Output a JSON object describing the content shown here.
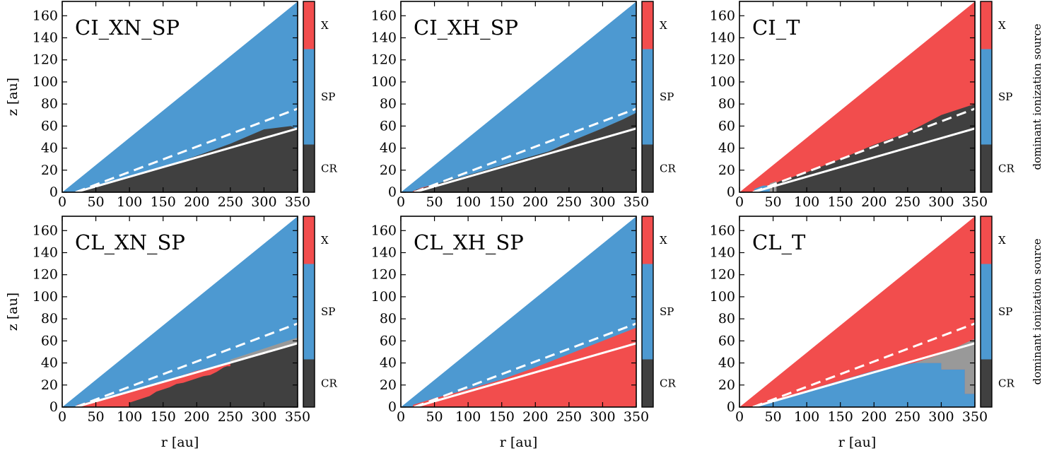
{
  "chart_data": {
    "type": "heatmap",
    "figure_description_title": "dominant ionization source",
    "colors": {
      "X": "#f24d4d",
      "SP": "#4d99d1",
      "CR": "#404040",
      "gray": "#999999",
      "line": "#ffffff",
      "frame": "#000000"
    },
    "x_axis": {
      "label": "r [au]",
      "range": [
        0,
        350
      ],
      "ticks": [
        0,
        50,
        100,
        150,
        200,
        250,
        300,
        350
      ]
    },
    "y_axis": {
      "label": "z [au]",
      "range": [
        0,
        173
      ],
      "ticks": [
        0,
        20,
        40,
        60,
        80,
        100,
        120,
        140,
        160
      ]
    },
    "colorbar": {
      "categories": [
        {
          "key": "X",
          "label": "X",
          "from": 0.75,
          "to": 1.0
        },
        {
          "key": "SP",
          "label": "SP",
          "from": 0.25,
          "to": 0.75
        },
        {
          "key": "CR",
          "label": "CR",
          "from": 0.0,
          "to": 0.25
        }
      ],
      "title": "dominant ionization source"
    },
    "disk_edge_slope": 0.494,
    "reference_lines": {
      "dashed": {
        "r0": 20,
        "slope": 0.2295
      },
      "solid": {
        "r0": 20,
        "slope": 0.1752
      }
    },
    "panels": [
      {
        "title": "CI_XN_SP",
        "base": "SP",
        "regions": [
          {
            "cat": "CR",
            "poly": [
              [
                20,
                0
              ],
              [
                350,
                0
              ],
              [
                350,
                57
              ],
              [
                340,
                60
              ],
              [
                300,
                57
              ],
              [
                250,
                44
              ],
              [
                200,
                33
              ],
              [
                150,
                23
              ],
              [
                100,
                14
              ],
              [
                50,
                6
              ],
              [
                20,
                1
              ]
            ]
          }
        ]
      },
      {
        "title": "CI_XH_SP",
        "base": "SP",
        "regions": [
          {
            "cat": "gray",
            "poly": [
              [
                220,
                37
              ],
              [
                260,
                48
              ],
              [
                300,
                58
              ],
              [
                330,
                66
              ],
              [
                350,
                72
              ],
              [
                350,
                62
              ],
              [
                320,
                58
              ],
              [
                280,
                50
              ],
              [
                240,
                43
              ]
            ]
          },
          {
            "cat": "X",
            "poly": [
              [
                18,
                0
              ],
              [
                55,
                0
              ],
              [
                55,
                8
              ],
              [
                30,
                4
              ],
              [
                18,
                1
              ]
            ]
          },
          {
            "cat": "CR",
            "poly": [
              [
                22,
                0
              ],
              [
                350,
                0
              ],
              [
                350,
                72
              ],
              [
                330,
                66
              ],
              [
                300,
                58
              ],
              [
                260,
                48
              ],
              [
                220,
                37
              ],
              [
                180,
                30
              ],
              [
                120,
                19
              ],
              [
                80,
                12
              ],
              [
                50,
                7
              ],
              [
                22,
                2
              ]
            ]
          }
        ]
      },
      {
        "title": "CI_T",
        "base": "X",
        "regions": [
          {
            "cat": "CR",
            "poly": [
              [
                50,
                0
              ],
              [
                350,
                0
              ],
              [
                350,
                80
              ],
              [
                300,
                70
              ],
              [
                250,
                54
              ],
              [
                200,
                43
              ],
              [
                150,
                30
              ],
              [
                100,
                18
              ],
              [
                60,
                10
              ],
              [
                50,
                7
              ]
            ]
          },
          {
            "cat": "SP",
            "poly": [
              [
                22,
                0
              ],
              [
                50,
                0
              ],
              [
                50,
                6
              ],
              [
                35,
                6
              ],
              [
                22,
                3
              ]
            ]
          },
          {
            "cat": "gray",
            "poly": [
              [
                45,
                0
              ],
              [
                55,
                0
              ],
              [
                55,
                10
              ],
              [
                45,
                8
              ]
            ]
          }
        ]
      },
      {
        "title": "CL_XN_SP",
        "base": "SP",
        "regions": [
          {
            "cat": "gray",
            "poly": [
              [
                250,
                40
              ],
              [
                300,
                48
              ],
              [
                350,
                58
              ],
              [
                350,
                63
              ],
              [
                300,
                53
              ],
              [
                250,
                43
              ]
            ]
          },
          {
            "cat": "X",
            "poly": [
              [
                22,
                0
              ],
              [
                350,
                0
              ],
              [
                350,
                58
              ],
              [
                300,
                48
              ],
              [
                250,
                40
              ],
              [
                200,
                33
              ],
              [
                150,
                23
              ],
              [
                100,
                14
              ],
              [
                50,
                6
              ],
              [
                22,
                2
              ]
            ]
          },
          {
            "cat": "CR",
            "poly": [
              [
                100,
                0
              ],
              [
                350,
                0
              ],
              [
                350,
                58
              ],
              [
                300,
                48
              ],
              [
                250,
                40
              ],
              [
                250,
                37
              ],
              [
                245,
                37
              ],
              [
                240,
                36
              ],
              [
                230,
                32
              ],
              [
                220,
                29
              ],
              [
                210,
                28
              ],
              [
                200,
                26
              ],
              [
                190,
                24
              ],
              [
                180,
                22
              ],
              [
                170,
                21
              ],
              [
                160,
                18
              ],
              [
                150,
                16
              ],
              [
                140,
                14
              ],
              [
                130,
                10
              ],
              [
                120,
                8
              ],
              [
                110,
                6
              ],
              [
                100,
                4
              ]
            ]
          }
        ]
      },
      {
        "title": "CL_XH_SP",
        "base": "SP",
        "regions": [
          {
            "cat": "X",
            "poly": [
              [
                18,
                0
              ],
              [
                350,
                0
              ],
              [
                350,
                72
              ],
              [
                300,
                60
              ],
              [
                250,
                48
              ],
              [
                200,
                36
              ],
              [
                150,
                25
              ],
              [
                100,
                16
              ],
              [
                50,
                8
              ],
              [
                18,
                2
              ]
            ]
          }
        ]
      },
      {
        "title": "CL_T",
        "base": "X",
        "regions": [
          {
            "cat": "gray",
            "poly": [
              [
                260,
                40
              ],
              [
                300,
                48
              ],
              [
                350,
                62
              ],
              [
                350,
                12
              ],
              [
                335,
                12
              ],
              [
                335,
                34
              ],
              [
                300,
                34
              ],
              [
                300,
                40
              ],
              [
                280,
                40
              ],
              [
                260,
                38
              ]
            ]
          },
          {
            "cat": "SP",
            "poly": [
              [
                22,
                0
              ],
              [
                350,
                0
              ],
              [
                350,
                12
              ],
              [
                335,
                12
              ],
              [
                335,
                34
              ],
              [
                300,
                34
              ],
              [
                300,
                40
              ],
              [
                260,
                40
              ],
              [
                200,
                33
              ],
              [
                150,
                24
              ],
              [
                100,
                15
              ],
              [
                50,
                6
              ],
              [
                22,
                1
              ]
            ]
          }
        ]
      }
    ]
  }
}
